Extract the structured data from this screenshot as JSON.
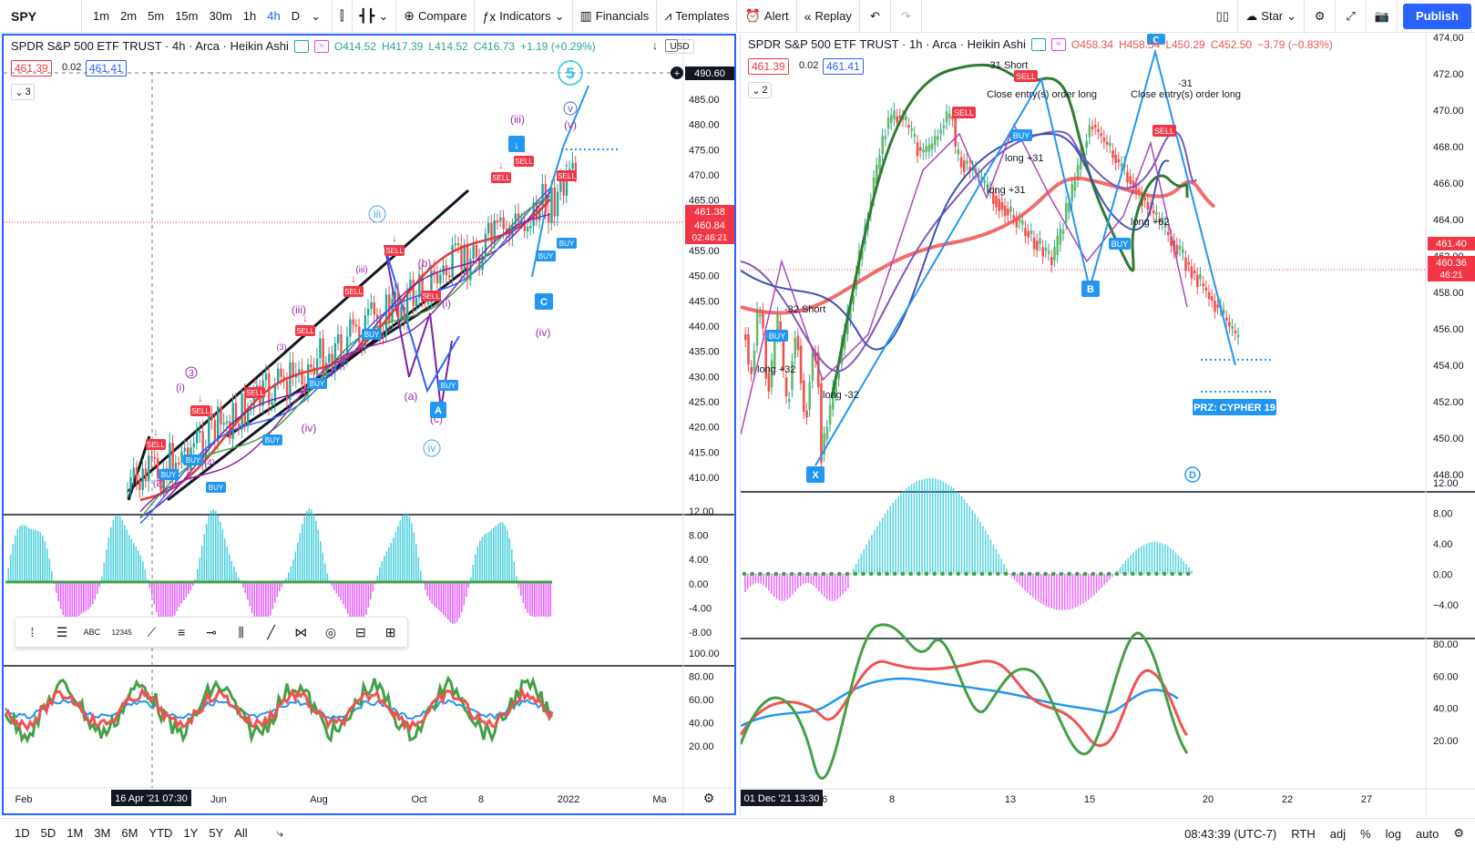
{
  "toolbar": {
    "symbol": "SPY",
    "timeframes": [
      "1m",
      "2m",
      "5m",
      "15m",
      "30m",
      "1h",
      "4h",
      "D"
    ],
    "active_timeframe": "4h",
    "compare": "Compare",
    "indicators": "Indicators",
    "financials": "Financials",
    "templates": "Templates",
    "alert": "Alert",
    "replay": "Replay",
    "layout_name": "Star",
    "publish": "Publish"
  },
  "left_chart": {
    "title": "SPDR S&P 500 ETF TRUST · 4h · Arca · Heikin Ashi",
    "open": "O414.52",
    "high": "H417.39",
    "low": "L414.52",
    "close": "C416.73",
    "change": "+1.19 (+0.29%)",
    "bid": "461.39",
    "spread": "0.02",
    "ask": "461.41",
    "collapsed_count": "3",
    "currency": "USD",
    "price_axis": [
      "490.60",
      "485.00",
      "480.00",
      "475.00",
      "470.00",
      "465.00",
      "460.00",
      "455.00",
      "450.00",
      "445.00",
      "440.00",
      "435.00",
      "430.00",
      "425.00",
      "420.00",
      "415.00",
      "410.00"
    ],
    "price_tags": [
      "461.38",
      "460.84",
      "02:46:21"
    ],
    "osc_axis": [
      "12.00",
      "8.00",
      "4.00",
      "0.00",
      "-4.00",
      "-8.00"
    ],
    "rsi_axis": [
      "100.00",
      "80.00",
      "60.00",
      "40.00",
      "20.00"
    ],
    "time_axis": [
      "Feb",
      "Jun",
      "Aug",
      "Oct",
      "8",
      "2022",
      "Ma"
    ],
    "crosshair_time": "16 Apr '21   07:30",
    "wave_labels": [
      "5",
      "v",
      "(v)",
      "(iii)",
      "iii",
      "(b)",
      "(iii)",
      "(a)",
      "(c)",
      "(iv)",
      "iv",
      "(iv)",
      "3",
      "(i)",
      "(4)",
      "(2)",
      "(i)",
      "(3)",
      "(iii)"
    ],
    "point_labels": [
      "A",
      "C"
    ],
    "signal_labels": [
      "BUY",
      "SELL"
    ]
  },
  "right_chart": {
    "title": "SPDR S&P 500 ETF TRUST · 1h · Arca · Heikin Ashi",
    "open": "O458.34",
    "high": "H458.34",
    "low": "L450.29",
    "close": "C452.50",
    "change": "−3.79 (−0.83%)",
    "bid": "461.39",
    "spread": "0.02",
    "ask": "461.41",
    "collapsed_count": "2",
    "price_axis": [
      "474.00",
      "472.00",
      "470.00",
      "468.00",
      "466.00",
      "464.00",
      "462.00",
      "458.00",
      "456.00",
      "454.00",
      "452.00",
      "450.00",
      "448.00"
    ],
    "price_tags": [
      "461.40",
      "460.36",
      "46:21"
    ],
    "osc_axis": [
      "12.00",
      "8.00",
      "4.00",
      "0.00",
      "−4.00"
    ],
    "rsi_axis": [
      "80.00",
      "60.00",
      "40.00",
      "20.00"
    ],
    "time_axis": [
      "6",
      "8",
      "13",
      "15",
      "20",
      "22",
      "27"
    ],
    "crosshair_time": "01 Dec '21   13:30",
    "annotations": {
      "short_top": "-31 Short",
      "close_entry_1": "Close entry(s) order long",
      "close_entry_2": "Close entry(s) order long",
      "minus31": "-31",
      "long31a": "long +31",
      "long31b": "long +31",
      "long62": "long +62",
      "short32": "-32 Short",
      "long32a": "long +32",
      "long32b": "long -32",
      "prz": "PRZ: CYPHER 19"
    },
    "points": [
      "X",
      "B",
      "C",
      "D"
    ],
    "signal_labels": [
      "BUY",
      "SELL"
    ]
  },
  "drawing_tools": [
    "⁞",
    "☰",
    "ABC",
    "12345",
    "⟋",
    "≡",
    "⊸",
    "⫼",
    "╱",
    "⋈",
    "◎",
    "⊟",
    "⊞"
  ],
  "bottom": {
    "ranges": [
      "1D",
      "5D",
      "1M",
      "3M",
      "6M",
      "YTD",
      "1Y",
      "5Y",
      "All"
    ],
    "clock": "08:43:39 (UTC-7)",
    "session": "RTH",
    "adj": "adj",
    "percent": "%",
    "log": "log",
    "auto": "auto"
  },
  "colors": {
    "accent": "#2962ff",
    "up": "#26a69a",
    "down": "#ef5350",
    "cyan": "#26c6da",
    "magenta": "#e040fb",
    "green": "#43a047",
    "red": "#f23645",
    "blue": "#2196f3"
  }
}
